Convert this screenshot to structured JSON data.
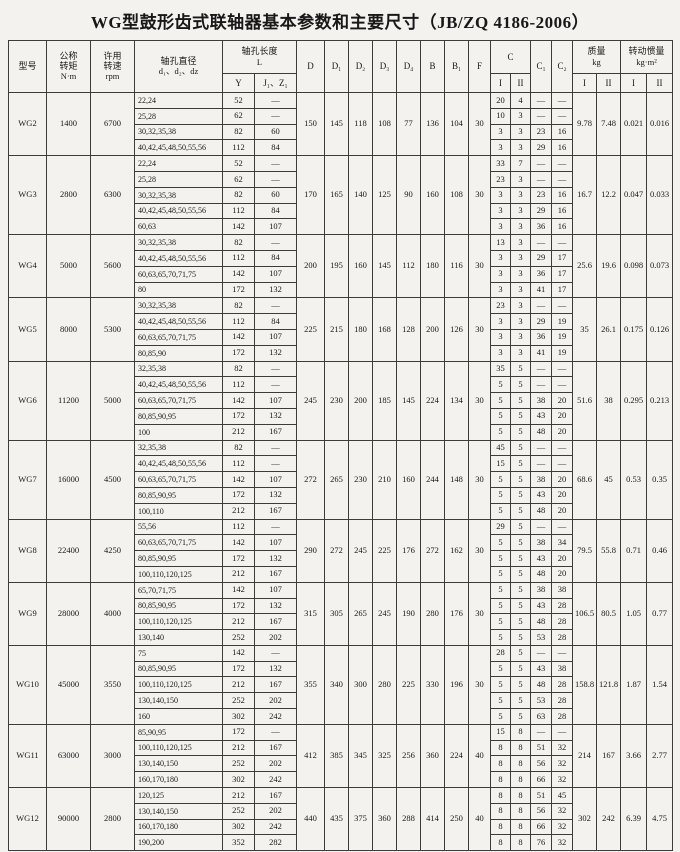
{
  "title": "WG型鼓形齿式联轴器基本参数和主要尺寸（JB/ZQ 4186-2006）",
  "table": {
    "headers": {
      "model": "型号",
      "torque": "公称\n转矩",
      "torque_unit": "N·m",
      "speed": "许用\n转速",
      "speed_unit": "rpm",
      "bore": "轴孔直径",
      "bore_sub": "d₁、d₂、dz",
      "length": "轴孔长度",
      "length_sym": "L",
      "length_y": "Y",
      "length_jz": "J₁、Z₁",
      "dims": [
        "D",
        "D₁",
        "D₂",
        "D₃",
        "D₄",
        "B",
        "B₁",
        "F"
      ],
      "c": "C",
      "c1": "C₁",
      "c2": "C₂",
      "mass": "质量",
      "mass_unit": "kg",
      "inertia": "转动惯量",
      "inertia_unit": "kg·m²",
      "col_i": "I",
      "col_ii": "II"
    },
    "groups": [
      {
        "model": "WG2",
        "torque": "1400",
        "speed": "6700",
        "dims": [
          "150",
          "145",
          "118",
          "108",
          "77",
          "136",
          "104",
          "30"
        ],
        "mass": [
          "9.78",
          "7.48"
        ],
        "inertia": [
          "0.021",
          "0.016"
        ],
        "rows": [
          {
            "d": "22,24",
            "y": "52",
            "j": "—",
            "c": [
              "20",
              "4",
              "—",
              "—"
            ]
          },
          {
            "d": "25,28",
            "y": "62",
            "j": "—",
            "c": [
              "10",
              "3",
              "—",
              "—"
            ]
          },
          {
            "d": "30,32,35,38",
            "y": "82",
            "j": "60",
            "c": [
              "3",
              "3",
              "23",
              "16"
            ]
          },
          {
            "d": "40,42,45,48,50,55,56",
            "y": "112",
            "j": "84",
            "c": [
              "3",
              "3",
              "29",
              "16"
            ]
          }
        ]
      },
      {
        "model": "WG3",
        "torque": "2800",
        "speed": "6300",
        "dims": [
          "170",
          "165",
          "140",
          "125",
          "90",
          "160",
          "108",
          "30"
        ],
        "mass": [
          "16.7",
          "12.2"
        ],
        "inertia": [
          "0.047",
          "0.033"
        ],
        "rows": [
          {
            "d": "22,24",
            "y": "52",
            "j": "—",
            "c": [
              "33",
              "7",
              "—",
              "—"
            ]
          },
          {
            "d": "25,28",
            "y": "62",
            "j": "—",
            "c": [
              "23",
              "3",
              "—",
              "—"
            ]
          },
          {
            "d": "30,32,35,38",
            "y": "82",
            "j": "60",
            "c": [
              "3",
              "3",
              "23",
              "16"
            ]
          },
          {
            "d": "40,42,45,48,50,55,56",
            "y": "112",
            "j": "84",
            "c": [
              "3",
              "3",
              "29",
              "16"
            ]
          },
          {
            "d": "60,63",
            "y": "142",
            "j": "107",
            "c": [
              "3",
              "3",
              "36",
              "16"
            ]
          }
        ]
      },
      {
        "model": "WG4",
        "torque": "5000",
        "speed": "5600",
        "dims": [
          "200",
          "195",
          "160",
          "145",
          "112",
          "180",
          "116",
          "30"
        ],
        "mass": [
          "25.6",
          "19.6"
        ],
        "inertia": [
          "0.098",
          "0.073"
        ],
        "rows": [
          {
            "d": "30,32,35,38",
            "y": "82",
            "j": "—",
            "c": [
              "13",
              "3",
              "—",
              "—"
            ]
          },
          {
            "d": "40,42,45,48,50,55,56",
            "y": "112",
            "j": "84",
            "c": [
              "3",
              "3",
              "29",
              "17"
            ]
          },
          {
            "d": "60,63,65,70,71,75",
            "y": "142",
            "j": "107",
            "c": [
              "3",
              "3",
              "36",
              "17"
            ]
          },
          {
            "d": "80",
            "y": "172",
            "j": "132",
            "c": [
              "3",
              "3",
              "41",
              "17"
            ]
          }
        ]
      },
      {
        "model": "WG5",
        "torque": "8000",
        "speed": "5300",
        "dims": [
          "225",
          "215",
          "180",
          "168",
          "128",
          "200",
          "126",
          "30"
        ],
        "mass": [
          "35",
          "26.1"
        ],
        "inertia": [
          "0.175",
          "0.126"
        ],
        "rows": [
          {
            "d": "30,32,35,38",
            "y": "82",
            "j": "—",
            "c": [
              "23",
              "3",
              "—",
              "—"
            ]
          },
          {
            "d": "40,42,45,48,50,55,56",
            "y": "112",
            "j": "84",
            "c": [
              "3",
              "3",
              "29",
              "19"
            ]
          },
          {
            "d": "60,63,65,70,71,75",
            "y": "142",
            "j": "107",
            "c": [
              "3",
              "3",
              "36",
              "19"
            ]
          },
          {
            "d": "80,85,90",
            "y": "172",
            "j": "132",
            "c": [
              "3",
              "3",
              "41",
              "19"
            ]
          }
        ]
      },
      {
        "model": "WG6",
        "torque": "11200",
        "speed": "5000",
        "dims": [
          "245",
          "230",
          "200",
          "185",
          "145",
          "224",
          "134",
          "30"
        ],
        "mass": [
          "51.6",
          "38"
        ],
        "inertia": [
          "0.295",
          "0.213"
        ],
        "rows": [
          {
            "d": "32,35,38",
            "y": "82",
            "j": "—",
            "c": [
              "35",
              "5",
              "—",
              "—"
            ]
          },
          {
            "d": "40,42,45,48,50,55,56",
            "y": "112",
            "j": "—",
            "c": [
              "5",
              "5",
              "—",
              "—"
            ]
          },
          {
            "d": "60,63,65,70,71,75",
            "y": "142",
            "j": "107",
            "c": [
              "5",
              "5",
              "38",
              "20"
            ]
          },
          {
            "d": "80,85,90,95",
            "y": "172",
            "j": "132",
            "c": [
              "5",
              "5",
              "43",
              "20"
            ]
          },
          {
            "d": "100",
            "y": "212",
            "j": "167",
            "c": [
              "5",
              "5",
              "48",
              "20"
            ]
          }
        ]
      },
      {
        "model": "WG7",
        "torque": "16000",
        "speed": "4500",
        "dims": [
          "272",
          "265",
          "230",
          "210",
          "160",
          "244",
          "148",
          "30"
        ],
        "mass": [
          "68.6",
          "45"
        ],
        "inertia": [
          "0.53",
          "0.35"
        ],
        "rows": [
          {
            "d": "32,35,38",
            "y": "82",
            "j": "—",
            "c": [
              "45",
              "5",
              "—",
              "—"
            ]
          },
          {
            "d": "40,42,45,48,50,55,56",
            "y": "112",
            "j": "—",
            "c": [
              "15",
              "5",
              "—",
              "—"
            ]
          },
          {
            "d": "60,63,65,70,71,75",
            "y": "142",
            "j": "107",
            "c": [
              "5",
              "5",
              "38",
              "20"
            ]
          },
          {
            "d": "80,85,90,95",
            "y": "172",
            "j": "132",
            "c": [
              "5",
              "5",
              "43",
              "20"
            ]
          },
          {
            "d": "100,110",
            "y": "212",
            "j": "167",
            "c": [
              "5",
              "5",
              "48",
              "20"
            ]
          }
        ]
      },
      {
        "model": "WG8",
        "torque": "22400",
        "speed": "4250",
        "dims": [
          "290",
          "272",
          "245",
          "225",
          "176",
          "272",
          "162",
          "30"
        ],
        "mass": [
          "79.5",
          "55.8"
        ],
        "inertia": [
          "0.71",
          "0.46"
        ],
        "rows": [
          {
            "d": "55,56",
            "y": "112",
            "j": "—",
            "c": [
              "29",
              "5",
              "—",
              "—"
            ]
          },
          {
            "d": "60,63,65,70,71,75",
            "y": "142",
            "j": "107",
            "c": [
              "5",
              "5",
              "38",
              "34"
            ]
          },
          {
            "d": "80,85,90,95",
            "y": "172",
            "j": "132",
            "c": [
              "5",
              "5",
              "43",
              "20"
            ]
          },
          {
            "d": "100,110,120,125",
            "y": "212",
            "j": "167",
            "c": [
              "5",
              "5",
              "48",
              "20"
            ]
          }
        ]
      },
      {
        "model": "WG9",
        "torque": "28000",
        "speed": "4000",
        "dims": [
          "315",
          "305",
          "265",
          "245",
          "190",
          "280",
          "176",
          "30"
        ],
        "mass": [
          "106.5",
          "80.5"
        ],
        "inertia": [
          "1.05",
          "0.77"
        ],
        "rows": [
          {
            "d": "65,70,71,75",
            "y": "142",
            "j": "107",
            "c": [
              "5",
              "5",
              "38",
              "38"
            ]
          },
          {
            "d": "80,85,90,95",
            "y": "172",
            "j": "132",
            "c": [
              "5",
              "5",
              "43",
              "28"
            ]
          },
          {
            "d": "100,110,120,125",
            "y": "212",
            "j": "167",
            "c": [
              "5",
              "5",
              "48",
              "28"
            ]
          },
          {
            "d": "130,140",
            "y": "252",
            "j": "202",
            "c": [
              "5",
              "5",
              "53",
              "28"
            ]
          }
        ]
      },
      {
        "model": "WG10",
        "torque": "45000",
        "speed": "3550",
        "dims": [
          "355",
          "340",
          "300",
          "280",
          "225",
          "330",
          "196",
          "30"
        ],
        "mass": [
          "158.8",
          "121.8"
        ],
        "inertia": [
          "1.87",
          "1.54"
        ],
        "rows": [
          {
            "d": "75",
            "y": "142",
            "j": "—",
            "c": [
              "28",
              "5",
              "—",
              "—"
            ]
          },
          {
            "d": "80,85,90,95",
            "y": "172",
            "j": "132",
            "c": [
              "5",
              "5",
              "43",
              "38"
            ]
          },
          {
            "d": "100,110,120,125",
            "y": "212",
            "j": "167",
            "c": [
              "5",
              "5",
              "48",
              "28"
            ]
          },
          {
            "d": "130,140,150",
            "y": "252",
            "j": "202",
            "c": [
              "5",
              "5",
              "53",
              "28"
            ]
          },
          {
            "d": "160",
            "y": "302",
            "j": "242",
            "c": [
              "5",
              "5",
              "63",
              "28"
            ]
          }
        ]
      },
      {
        "model": "WG11",
        "torque": "63000",
        "speed": "3000",
        "dims": [
          "412",
          "385",
          "345",
          "325",
          "256",
          "360",
          "224",
          "40"
        ],
        "mass": [
          "214",
          "167"
        ],
        "inertia": [
          "3.66",
          "2.77"
        ],
        "rows": [
          {
            "d": "85,90,95",
            "y": "172",
            "j": "—",
            "c": [
              "15",
              "8",
              "—",
              "—"
            ]
          },
          {
            "d": "100,110,120,125",
            "y": "212",
            "j": "167",
            "c": [
              "8",
              "8",
              "51",
              "32"
            ]
          },
          {
            "d": "130,140,150",
            "y": "252",
            "j": "202",
            "c": [
              "8",
              "8",
              "56",
              "32"
            ]
          },
          {
            "d": "160,170,180",
            "y": "302",
            "j": "242",
            "c": [
              "8",
              "8",
              "66",
              "32"
            ]
          }
        ]
      },
      {
        "model": "WG12",
        "torque": "90000",
        "speed": "2800",
        "dims": [
          "440",
          "435",
          "375",
          "360",
          "288",
          "414",
          "250",
          "40"
        ],
        "mass": [
          "302",
          "242"
        ],
        "inertia": [
          "6.39",
          "4.75"
        ],
        "rows": [
          {
            "d": "120,125",
            "y": "212",
            "j": "167",
            "c": [
              "8",
              "8",
              "51",
              "45"
            ]
          },
          {
            "d": "130,140,150",
            "y": "252",
            "j": "202",
            "c": [
              "8",
              "8",
              "56",
              "32"
            ]
          },
          {
            "d": "160,170,180",
            "y": "302",
            "j": "242",
            "c": [
              "8",
              "8",
              "66",
              "32"
            ]
          },
          {
            "d": "190,200",
            "y": "352",
            "j": "282",
            "c": [
              "8",
              "8",
              "76",
              "32"
            ]
          }
        ]
      }
    ]
  }
}
